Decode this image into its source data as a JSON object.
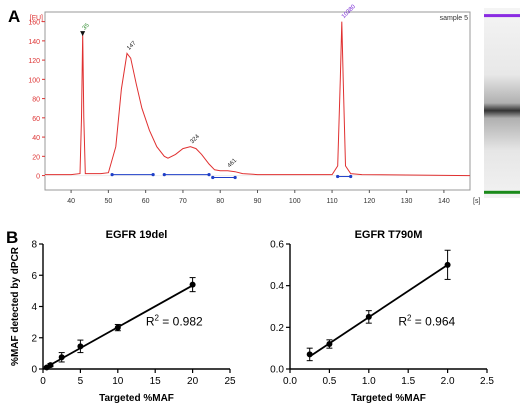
{
  "panel_labels": {
    "a": "A",
    "b": "B"
  },
  "chart_data": [
    {
      "type": "line",
      "panel": "A",
      "ylabel": "[FU]",
      "xlabel": "[s]",
      "sample_label": "sample 5",
      "xlim": [
        33,
        147
      ],
      "ylim": [
        -15,
        170
      ],
      "x_ticks": [
        40,
        50,
        60,
        70,
        80,
        90,
        100,
        110,
        120,
        130,
        140
      ],
      "y_ticks": [
        0,
        20,
        40,
        60,
        80,
        100,
        120,
        140,
        160
      ],
      "trace": [
        [
          33,
          1
        ],
        [
          40,
          1
        ],
        [
          42.4,
          2
        ],
        [
          42.8,
          60
        ],
        [
          43.1,
          148
        ],
        [
          43.4,
          60
        ],
        [
          43.8,
          2
        ],
        [
          48,
          2
        ],
        [
          50,
          3
        ],
        [
          52,
          30
        ],
        [
          53.5,
          90
        ],
        [
          55,
          127
        ],
        [
          56,
          122
        ],
        [
          57.5,
          95
        ],
        [
          59,
          70
        ],
        [
          61,
          47
        ],
        [
          63,
          30
        ],
        [
          65,
          20
        ],
        [
          66,
          18
        ],
        [
          68,
          22
        ],
        [
          70,
          28
        ],
        [
          72,
          30
        ],
        [
          73.5,
          28
        ],
        [
          75,
          22
        ],
        [
          77,
          12
        ],
        [
          78.5,
          6
        ],
        [
          80,
          5
        ],
        [
          82,
          5
        ],
        [
          84,
          4
        ],
        [
          86,
          2
        ],
        [
          90,
          1
        ],
        [
          100,
          1
        ],
        [
          110,
          1
        ],
        [
          111.5,
          10
        ],
        [
          112.2,
          100
        ],
        [
          112.6,
          160
        ],
        [
          113,
          100
        ],
        [
          113.6,
          10
        ],
        [
          115,
          2
        ],
        [
          118,
          1
        ],
        [
          147,
          0
        ]
      ],
      "peaks": [
        {
          "x": 43.1,
          "y": 148,
          "label": "35",
          "color": "#2e8b2e"
        },
        {
          "x": 55,
          "y": 127,
          "label": "147",
          "color": "#222222"
        },
        {
          "x": 72,
          "y": 30,
          "label": "324",
          "color": "#222222"
        },
        {
          "x": 82,
          "y": 5,
          "label": "461",
          "color": "#222222"
        },
        {
          "x": 112.6,
          "y": 160,
          "label": "10380",
          "color": "#7a2bd6"
        }
      ],
      "integration_segments": [
        {
          "x1": 51,
          "x2": 62,
          "y": 1
        },
        {
          "x1": 65,
          "x2": 77,
          "y": 1
        },
        {
          "x1": 78,
          "x2": 84,
          "y": -2
        },
        {
          "x1": 111.5,
          "x2": 115,
          "y": -1
        }
      ],
      "gel_bands": [
        {
          "pos": 0.04,
          "color": "#8a2be2"
        },
        {
          "pos": 0.54,
          "color": "#1a1a1a"
        },
        {
          "pos": 0.97,
          "color": "#1a8a1a"
        }
      ]
    },
    {
      "type": "scatter",
      "panel": "B",
      "title": "EGFR 19del",
      "xlabel": "Targeted %MAF",
      "ylabel": "%MAF detected by dPCR",
      "xlim": [
        0,
        25
      ],
      "ylim": [
        0,
        8
      ],
      "x_ticks": [
        0,
        5,
        10,
        15,
        20,
        25
      ],
      "y_ticks": [
        0,
        2,
        4,
        6,
        8
      ],
      "x": [
        0.5,
        1,
        2.5,
        5,
        10,
        20
      ],
      "y": [
        0.1,
        0.25,
        0.75,
        1.45,
        2.65,
        5.4
      ],
      "error": [
        0.05,
        0.1,
        0.3,
        0.4,
        0.2,
        0.45
      ],
      "fit": {
        "x": [
          0,
          20
        ],
        "y": [
          0,
          5.35
        ]
      },
      "r2_prefix": "R",
      "r2_exp": "2",
      "r2_value": " = 0.982"
    },
    {
      "type": "scatter",
      "panel": "B",
      "title": "EGFR T790M",
      "xlabel": "Targeted %MAF",
      "ylabel": "",
      "xlim": [
        0,
        2.5
      ],
      "ylim": [
        0,
        0.6
      ],
      "x_ticks": [
        0.0,
        0.5,
        1.0,
        1.5,
        2.0,
        2.5
      ],
      "y_ticks": [
        0.0,
        0.2,
        0.4,
        0.6
      ],
      "x": [
        0.25,
        0.5,
        1.0,
        2.0
      ],
      "y": [
        0.07,
        0.12,
        0.25,
        0.5
      ],
      "error": [
        0.03,
        0.02,
        0.03,
        0.07
      ],
      "fit": {
        "x": [
          0.25,
          2.0
        ],
        "y": [
          0.06,
          0.5
        ]
      },
      "r2_prefix": "R",
      "r2_exp": "2",
      "r2_value": " = 0.964"
    }
  ]
}
